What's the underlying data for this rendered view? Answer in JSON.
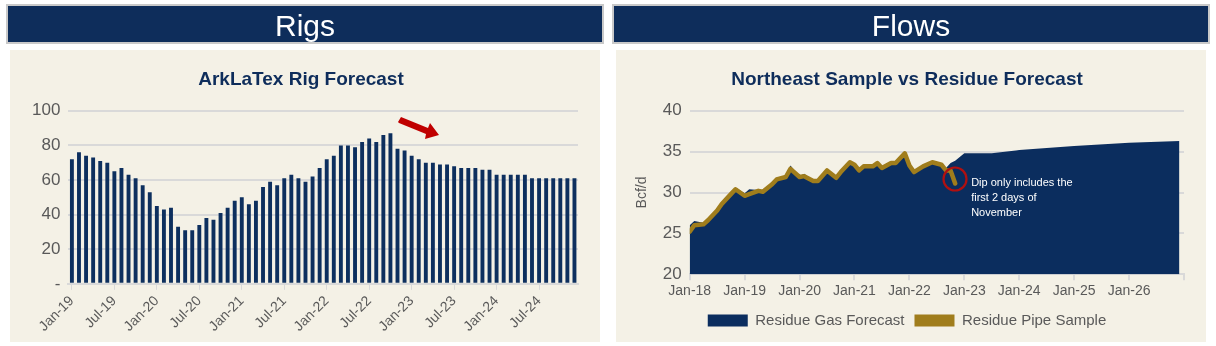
{
  "chart_data": [
    {
      "type": "bar",
      "title": "Rigs",
      "subtitle": "ArkLaTex Rig Forecast",
      "categories": [
        "Jan-19",
        null,
        null,
        null,
        null,
        null,
        "Jul-19",
        null,
        null,
        null,
        null,
        null,
        "Jan-20",
        null,
        null,
        null,
        null,
        null,
        "Jul-20",
        null,
        null,
        null,
        null,
        null,
        "Jan-21",
        null,
        null,
        null,
        null,
        null,
        "Jul-21",
        null,
        null,
        null,
        null,
        null,
        "Jan-22",
        null,
        null,
        null,
        null,
        null,
        "Jul-22",
        null,
        null,
        null,
        null,
        null,
        "Jan-23",
        null,
        null,
        null,
        null,
        null,
        "Jul-23",
        null,
        null,
        null,
        null,
        null,
        "Jan-24",
        null,
        null,
        null,
        null,
        null,
        "Jul-24",
        null,
        null,
        null,
        null,
        null
      ],
      "values": [
        72,
        76,
        74,
        73,
        71,
        70,
        65,
        67,
        63,
        61,
        57,
        53,
        45,
        43,
        44,
        33,
        31,
        31,
        34,
        38,
        37,
        41,
        44,
        48,
        50,
        46,
        48,
        56,
        59,
        57,
        61,
        63,
        61,
        59,
        62,
        67,
        72,
        74,
        80,
        80,
        79,
        82,
        84,
        82,
        86,
        87,
        78,
        77,
        74,
        72,
        70,
        70,
        69,
        69,
        68,
        67,
        67,
        67,
        66,
        66,
        63,
        63,
        63,
        63,
        63,
        61,
        61,
        61,
        61,
        61,
        61,
        61
      ],
      "color": "#0d2f5e",
      "ylim": [
        0,
        100
      ],
      "yticks": [
        {
          "value": 0,
          "label": "-"
        },
        20,
        40,
        60,
        80,
        100
      ],
      "grid": "y",
      "legend": false
    },
    {
      "type": "area",
      "title": "Flows",
      "subtitle": "Northeast Sample vs Residue Forecast",
      "ylabel": "Bcf/d",
      "series": [
        {
          "name": "Residue Gas Forecast",
          "type": "area",
          "color": "#0b2d5e",
          "x": [
            "2018-01",
            "2018-02",
            "2018-04",
            "2018-05",
            "2018-07",
            "2018-08",
            "2018-10",
            "2018-11",
            "2019-01",
            "2019-02",
            "2019-04",
            "2019-05",
            "2019-07",
            "2019-08",
            "2019-10",
            "2019-11",
            "2020-01",
            "2020-02",
            "2020-04",
            "2020-05",
            "2020-07",
            "2020-09",
            "2020-10",
            "2020-12",
            "2021-01",
            "2021-02",
            "2021-03",
            "2021-05",
            "2021-06",
            "2021-07",
            "2021-09",
            "2021-10",
            "2021-12",
            "2022-01",
            "2022-02",
            "2022-04",
            "2022-06",
            "2022-08",
            "2022-09",
            "2022-10",
            "2022-11",
            "2023-01",
            "2023-07",
            "2024-01",
            "2025-01",
            "2026-01",
            "2026-12"
          ],
          "values": [
            26.0,
            26.5,
            26.3,
            26.8,
            28.0,
            28.8,
            30.0,
            30.6,
            29.9,
            30.4,
            30.3,
            30.3,
            31.2,
            31.8,
            32.0,
            33.3,
            32.0,
            32.3,
            31.5,
            31.5,
            32.8,
            32.0,
            32.7,
            33.9,
            33.4,
            33.0,
            33.3,
            33.4,
            33.6,
            33.2,
            33.7,
            33.7,
            34.9,
            33.4,
            32.7,
            33.3,
            33.8,
            33.5,
            33.0,
            33.6,
            33.9,
            34.8,
            34.8,
            35.2,
            35.7,
            36.1,
            36.3
          ]
        },
        {
          "name": "Residue Pipe Sample",
          "type": "line",
          "color": "#a07d1c",
          "x": [
            "2018-01",
            "2018-02",
            "2018-04",
            "2018-05",
            "2018-07",
            "2018-08",
            "2018-10",
            "2018-11",
            "2019-01",
            "2019-02",
            "2019-04",
            "2019-05",
            "2019-07",
            "2019-08",
            "2019-10",
            "2019-11",
            "2020-01",
            "2020-02",
            "2020-04",
            "2020-05",
            "2020-07",
            "2020-09",
            "2020-10",
            "2020-12",
            "2021-01",
            "2021-02",
            "2021-03",
            "2021-05",
            "2021-06",
            "2021-07",
            "2021-09",
            "2021-10",
            "2021-12",
            "2022-01",
            "2022-02",
            "2022-04",
            "2022-06",
            "2022-08",
            "2022-09",
            "2022-10",
            "2022-11"
          ],
          "values": [
            25.2,
            26.0,
            26.1,
            26.6,
            27.8,
            28.6,
            29.8,
            30.4,
            29.6,
            29.8,
            30.2,
            30.1,
            31.0,
            31.6,
            31.9,
            32.9,
            31.9,
            32.0,
            31.4,
            31.4,
            32.7,
            31.8,
            32.5,
            33.7,
            33.4,
            32.7,
            33.2,
            33.2,
            33.6,
            33.0,
            33.6,
            33.6,
            34.8,
            33.3,
            32.5,
            33.2,
            33.7,
            33.4,
            32.7,
            32.7,
            31.1
          ]
        }
      ],
      "xlim": [
        "2018-01",
        "2027-01"
      ],
      "xticks": [
        {
          "value": "2018-01",
          "label": "Jan-18"
        },
        {
          "value": "2019-01",
          "label": "Jan-19"
        },
        {
          "value": "2020-01",
          "label": "Jan-20"
        },
        {
          "value": "2021-01",
          "label": "Jan-21"
        },
        {
          "value": "2022-01",
          "label": "Jan-22"
        },
        {
          "value": "2023-01",
          "label": "Jan-23"
        },
        {
          "value": "2024-01",
          "label": "Jan-24"
        },
        {
          "value": "2025-01",
          "label": "Jan-25"
        },
        {
          "value": "2026-01",
          "label": "Jan-26"
        },
        {
          "value": "2027-01",
          "label": null
        }
      ],
      "ylim": [
        20,
        40
      ],
      "yticks": [
        20,
        25,
        30,
        35,
        40
      ],
      "grid": "y",
      "legend": "bottom",
      "annotations": [
        {
          "text": "Dip only includes the first 2 days of November",
          "x": "2022-11",
          "y": 31.1
        }
      ]
    }
  ]
}
